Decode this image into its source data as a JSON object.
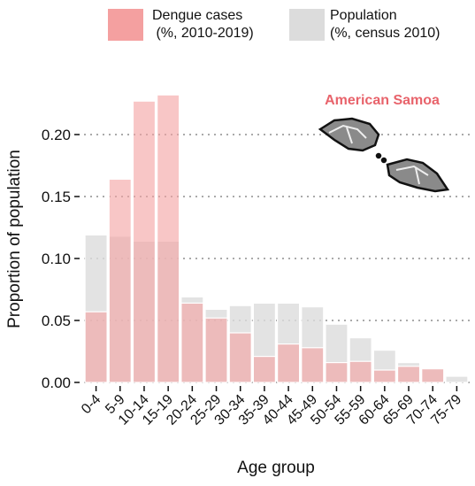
{
  "chart_data": {
    "type": "bar",
    "annotation": "American Samoa",
    "x_label": "Age group",
    "y_label": "Proportion of population",
    "categories": [
      "0-4",
      "5-9",
      "10-14",
      "15-19",
      "20-24",
      "25-29",
      "30-34",
      "35-39",
      "40-44",
      "45-49",
      "50-54",
      "55-59",
      "60-64",
      "65-69",
      "70-74",
      "75-79"
    ],
    "series": [
      {
        "name": "Population\n(%, census 2010)",
        "color": "#dcdcdc",
        "values": [
          0.119,
          0.118,
          0.114,
          0.114,
          0.069,
          0.059,
          0.062,
          0.064,
          0.064,
          0.061,
          0.047,
          0.036,
          0.026,
          0.016,
          0.011,
          0.005
        ]
      },
      {
        "name": "Dengue cases\n (%, 2010-2019)",
        "color": "#f4a0a0",
        "values": [
          0.057,
          0.164,
          0.227,
          0.232,
          0.064,
          0.052,
          0.04,
          0.021,
          0.031,
          0.028,
          0.016,
          0.017,
          0.01,
          0.013,
          0.011,
          0
        ]
      }
    ],
    "ylim": [
      0,
      0.24
    ],
    "yticks": [
      {
        "value": 0,
        "label": "0.00"
      },
      0.05,
      {
        "value": 0.1,
        "label": "0.10"
      },
      0.15,
      {
        "value": 0.2,
        "label": "0.20"
      }
    ],
    "grid": true
  }
}
